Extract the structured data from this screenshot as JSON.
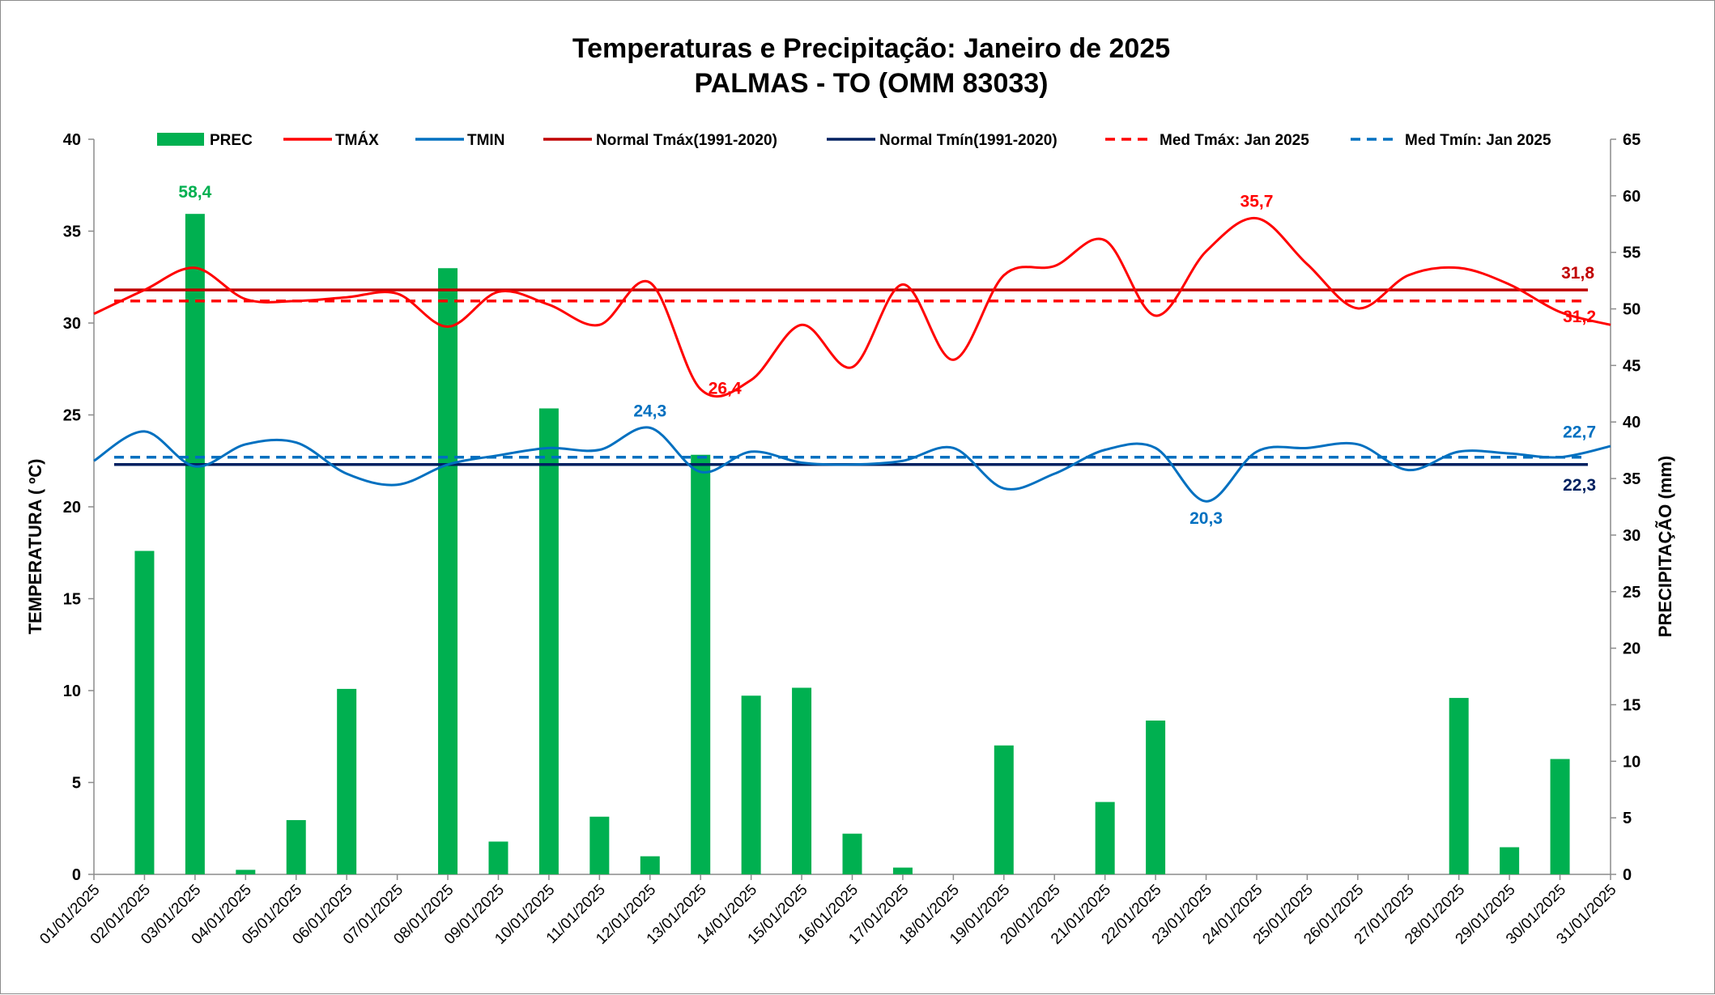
{
  "chart_data": {
    "type": "bar+line",
    "title": "Temperaturas e Precipitação: Janeiro de 2025",
    "subtitle": "PALMAS - TO (OMM 83033)",
    "ylabel_left": "TEMPERATURA ( ºC)",
    "ylabel_right": "PRECIPITAÇÃO (mm)",
    "ylim_left": [
      0,
      40
    ],
    "ylim_right": [
      0,
      65
    ],
    "yticks_left": [
      "0",
      "5",
      "10",
      "15",
      "20",
      "25",
      "30",
      "35",
      "40"
    ],
    "yticks_right": [
      "0",
      "5",
      "10",
      "15",
      "20",
      "25",
      "30",
      "35",
      "40",
      "45",
      "50",
      "55",
      "60",
      "65"
    ],
    "categories": [
      "01/01/2025",
      "02/01/2025",
      "03/01/2025",
      "04/01/2025",
      "05/01/2025",
      "06/01/2025",
      "07/01/2025",
      "08/01/2025",
      "09/01/2025",
      "10/01/2025",
      "11/01/2025",
      "12/01/2025",
      "13/01/2025",
      "14/01/2025",
      "15/01/2025",
      "16/01/2025",
      "17/01/2025",
      "18/01/2025",
      "19/01/2025",
      "20/01/2025",
      "21/01/2025",
      "22/01/2025",
      "23/01/2025",
      "24/01/2025",
      "25/01/2025",
      "26/01/2025",
      "27/01/2025",
      "28/01/2025",
      "29/01/2025",
      "30/01/2025",
      "31/01/2025"
    ],
    "colors": {
      "prec": "#00b050",
      "tmax": "#ff0000",
      "tmin": "#0070c0",
      "normal_tmax": "#c00000",
      "normal_tmin": "#002060",
      "med_tmax": "#ff0000",
      "med_tmin": "#0070c0"
    },
    "legend": {
      "prec": "PREC",
      "tmax": "TMÁX",
      "tmin": "TMIN",
      "normal_tmax": "Normal Tmáx(1991-2020)",
      "normal_tmin": "Normal Tmín(1991-2020)",
      "med_tmax": "Med Tmáx: Jan 2025",
      "med_tmin": "Med Tmín: Jan 2025"
    },
    "series": [
      {
        "name": "PREC",
        "axis": "right",
        "kind": "bar",
        "values": [
          0,
          28.6,
          58.4,
          0.4,
          4.8,
          16.4,
          0,
          53.6,
          2.9,
          41.2,
          5.1,
          1.6,
          37.1,
          15.8,
          16.5,
          3.6,
          0.6,
          0,
          11.4,
          0,
          6.4,
          13.6,
          0,
          0,
          0,
          0,
          0,
          15.6,
          2.4,
          10.2,
          0
        ]
      },
      {
        "name": "TMÁX",
        "axis": "left",
        "kind": "line",
        "values": [
          30.5,
          31.8,
          33.0,
          31.3,
          31.2,
          31.4,
          31.6,
          29.8,
          31.7,
          31.0,
          29.9,
          32.2,
          26.4,
          26.9,
          29.9,
          27.6,
          32.1,
          28.0,
          32.6,
          33.1,
          34.5,
          30.4,
          33.9,
          35.7,
          33.2,
          30.8,
          32.6,
          33.0,
          32.1,
          30.6,
          29.9
        ]
      },
      {
        "name": "TMIN",
        "axis": "left",
        "kind": "line",
        "values": [
          22.5,
          24.1,
          22.2,
          23.4,
          23.5,
          21.8,
          21.2,
          22.3,
          22.8,
          23.2,
          23.1,
          24.3,
          21.9,
          23.0,
          22.4,
          22.3,
          22.5,
          23.2,
          21.0,
          21.8,
          23.1,
          23.2,
          20.3,
          23.0,
          23.2,
          23.4,
          22.0,
          23.0,
          22.9,
          22.7,
          23.3
        ]
      },
      {
        "name": "Normal Tmáx(1991-2020)",
        "axis": "left",
        "kind": "hline",
        "value": 31.8
      },
      {
        "name": "Normal Tmín(1991-2020)",
        "axis": "left",
        "kind": "hline",
        "value": 22.3
      },
      {
        "name": "Med Tmáx: Jan 2025",
        "axis": "left",
        "kind": "hline-dashed",
        "value": 31.2
      },
      {
        "name": "Med Tmín: Jan 2025",
        "axis": "left",
        "kind": "hline-dashed",
        "value": 22.7
      }
    ],
    "annotations": [
      {
        "text": "58,4",
        "series": "PREC",
        "index": 2
      },
      {
        "text": "35,7",
        "series": "TMÁX",
        "index": 23
      },
      {
        "text": "26,4",
        "series": "TMÁX",
        "index": 12
      },
      {
        "text": "24,3",
        "series": "TMIN",
        "index": 11
      },
      {
        "text": "20,3",
        "series": "TMIN",
        "index": 22
      },
      {
        "text": "31,8",
        "series": "Normal Tmáx(1991-2020)",
        "index": 30
      },
      {
        "text": "31,2",
        "series": "Med Tmáx: Jan 2025",
        "index": 30
      },
      {
        "text": "22,7",
        "series": "Med Tmín: Jan 2025",
        "index": 30
      },
      {
        "text": "22,3",
        "series": "Normal Tmín(1991-2020)",
        "index": 30
      }
    ]
  }
}
